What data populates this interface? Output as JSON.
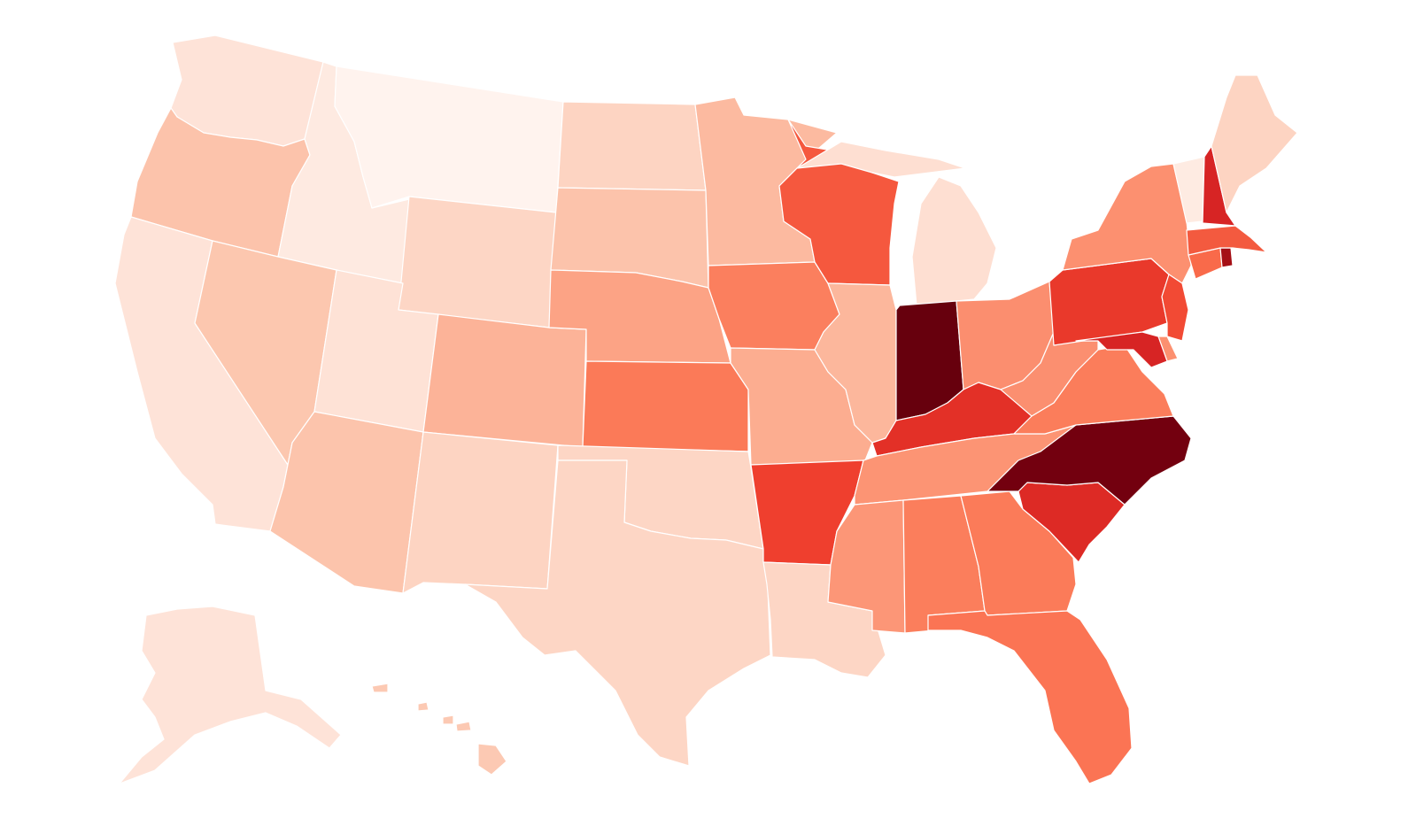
{
  "map": {
    "type": "choropleth",
    "region": "United States",
    "color_scale": [
      "#fff5f0",
      "#fee0d2",
      "#fcbba1",
      "#fc9272",
      "#fb6a4a",
      "#ef3b2c",
      "#cb181d",
      "#a50f15",
      "#67000d"
    ],
    "states": [
      {
        "id": "WA",
        "level": 1,
        "color": "#fee3d8"
      },
      {
        "id": "OR",
        "level": 2,
        "color": "#fcc3ab"
      },
      {
        "id": "CA",
        "level": 1,
        "color": "#fee3d8"
      },
      {
        "id": "ID",
        "level": 0,
        "color": "#feeae1"
      },
      {
        "id": "NV",
        "level": 2,
        "color": "#fcc7af"
      },
      {
        "id": "MT",
        "level": 0,
        "color": "#fff3ee"
      },
      {
        "id": "WY",
        "level": 1,
        "color": "#fdd6c5"
      },
      {
        "id": "UT",
        "level": 1,
        "color": "#fee2d6"
      },
      {
        "id": "AZ",
        "level": 2,
        "color": "#fcc4ac"
      },
      {
        "id": "CO",
        "level": 2,
        "color": "#fcb398"
      },
      {
        "id": "NM",
        "level": 1,
        "color": "#fdd4c2"
      },
      {
        "id": "ND",
        "level": 1,
        "color": "#fdd4c2"
      },
      {
        "id": "SD",
        "level": 2,
        "color": "#fcc3ab"
      },
      {
        "id": "NE",
        "level": 3,
        "color": "#fca385"
      },
      {
        "id": "KS",
        "level": 4,
        "color": "#fb7a58"
      },
      {
        "id": "OK",
        "level": 1,
        "color": "#fdd6c5"
      },
      {
        "id": "TX",
        "level": 1,
        "color": "#fdd6c5"
      },
      {
        "id": "MN",
        "level": 2,
        "color": "#fcbaa0"
      },
      {
        "id": "IA",
        "level": 4,
        "color": "#fb7f5e"
      },
      {
        "id": "MO",
        "level": 3,
        "color": "#fcad90"
      },
      {
        "id": "AR",
        "level": 5,
        "color": "#ef3f2e"
      },
      {
        "id": "LA",
        "level": 1,
        "color": "#fdd6c5"
      },
      {
        "id": "WI",
        "level": 5,
        "color": "#f5583e"
      },
      {
        "id": "IL",
        "level": 2,
        "color": "#fcb79c"
      },
      {
        "id": "MI",
        "level": 1,
        "color": "#fedfd2"
      },
      {
        "id": "IN",
        "level": 8,
        "color": "#67000d"
      },
      {
        "id": "OH",
        "level": 3,
        "color": "#fb8e6f"
      },
      {
        "id": "KY",
        "level": 6,
        "color": "#e33027"
      },
      {
        "id": "TN",
        "level": 3,
        "color": "#fc9474"
      },
      {
        "id": "MS",
        "level": 3,
        "color": "#fc9677"
      },
      {
        "id": "AL",
        "level": 4,
        "color": "#fb7e5c"
      },
      {
        "id": "GA",
        "level": 4,
        "color": "#fb7b59"
      },
      {
        "id": "FL",
        "level": 4,
        "color": "#fb7454"
      },
      {
        "id": "SC",
        "level": 6,
        "color": "#dd2a25"
      },
      {
        "id": "NC",
        "level": 8,
        "color": "#73000f"
      },
      {
        "id": "VA",
        "level": 4,
        "color": "#fb7d5b"
      },
      {
        "id": "WV",
        "level": 3,
        "color": "#fb8f70"
      },
      {
        "id": "PA",
        "level": 5,
        "color": "#e9392b"
      },
      {
        "id": "NY",
        "level": 3,
        "color": "#fc9070"
      },
      {
        "id": "NJ",
        "level": 5,
        "color": "#f24a34"
      },
      {
        "id": "DE",
        "level": 3,
        "color": "#fc9070"
      },
      {
        "id": "MD",
        "level": 6,
        "color": "#d72424"
      },
      {
        "id": "CT",
        "level": 4,
        "color": "#f96a4a"
      },
      {
        "id": "RI",
        "level": 7,
        "color": "#a50f15"
      },
      {
        "id": "MA",
        "level": 5,
        "color": "#f35a3f"
      },
      {
        "id": "VT",
        "level": 0,
        "color": "#feebe2"
      },
      {
        "id": "NH",
        "level": 6,
        "color": "#d72424"
      },
      {
        "id": "ME",
        "level": 1,
        "color": "#fdd4c2"
      },
      {
        "id": "AK",
        "level": 1,
        "color": "#fee3d8"
      },
      {
        "id": "HI",
        "level": 2,
        "color": "#fcc9b3"
      }
    ]
  }
}
